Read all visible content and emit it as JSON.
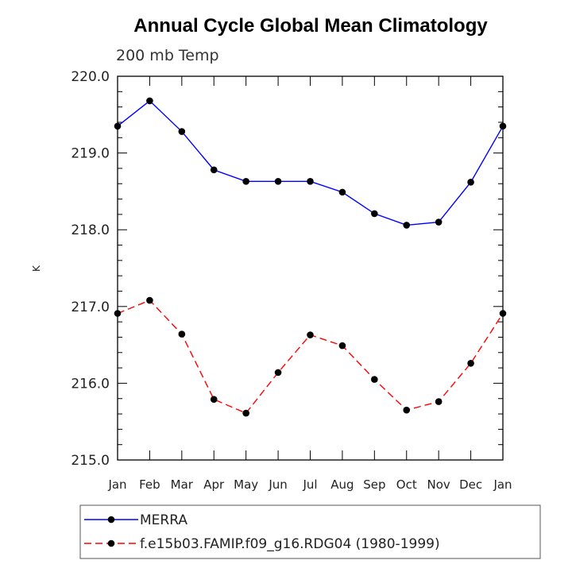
{
  "chart_data": {
    "type": "line",
    "title": "Annual Cycle Global Mean Climatology",
    "subtitle": "200 mb Temp",
    "xlabel": "",
    "ylabel": "K",
    "categories": [
      "Jan",
      "Feb",
      "Mar",
      "Apr",
      "May",
      "Jun",
      "Jul",
      "Aug",
      "Sep",
      "Oct",
      "Nov",
      "Dec",
      "Jan"
    ],
    "ylim": [
      215.0,
      220.0
    ],
    "yticks": [
      "215.0",
      "216.0",
      "217.0",
      "218.0",
      "219.0",
      "220.0"
    ],
    "series": [
      {
        "name": "MERRA",
        "color": "#0000ff",
        "dashed": false,
        "values": [
          219.35,
          219.68,
          219.28,
          218.78,
          218.63,
          218.63,
          218.63,
          218.49,
          218.21,
          218.06,
          218.1,
          218.62,
          219.35
        ]
      },
      {
        "name": "f.e15b03.FAMIP.f09_g16.RDG04 (1980-1999)",
        "color": "#ff0000",
        "dashed": true,
        "values": [
          216.91,
          217.08,
          216.64,
          215.79,
          215.61,
          216.14,
          216.63,
          216.49,
          216.05,
          215.65,
          215.76,
          216.26,
          216.91
        ]
      }
    ]
  }
}
